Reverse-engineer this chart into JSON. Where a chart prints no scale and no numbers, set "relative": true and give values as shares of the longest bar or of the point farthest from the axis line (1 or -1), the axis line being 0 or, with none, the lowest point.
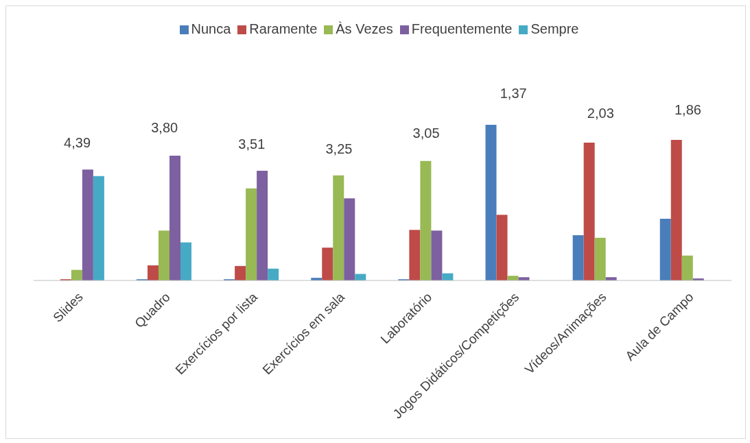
{
  "chart_data": {
    "type": "bar",
    "relative": true,
    "legend": "top",
    "categories": [
      "Slides",
      "Quadro",
      "Exercícios por lista",
      "Exercícios em sala",
      "Laboratório",
      "Jogos Didáticos/Competições",
      "Vídeos/Animações",
      "Aula de Campo"
    ],
    "series": [
      {
        "name": "Nunca",
        "color": "#4a7ebb",
        "values": [
          0,
          0.008,
          0.008,
          0.017,
          0.008,
          1,
          0.291,
          0.397
        ]
      },
      {
        "name": "Raramente",
        "color": "#be4b48",
        "values": [
          0.008,
          0.097,
          0.093,
          0.211,
          0.325,
          0.422,
          0.886,
          0.903
        ]
      },
      {
        "name": "Às Vezes",
        "color": "#98b954",
        "values": [
          0.068,
          0.321,
          0.591,
          0.675,
          0.768,
          0.03,
          0.274,
          0.16
        ]
      },
      {
        "name": "Frequentemente",
        "color": "#7d60a0",
        "values": [
          0.713,
          0.802,
          0.705,
          0.527,
          0.321,
          0.021,
          0.021,
          0.013
        ]
      },
      {
        "name": "Sempre",
        "color": "#46aac5",
        "values": [
          0.671,
          0.245,
          0.076,
          0.042,
          0.046,
          0,
          0,
          0
        ]
      }
    ],
    "annotations": [
      "4,39",
      "3,80",
      "3,51",
      "3,25",
      "3,05",
      "1,37",
      "2,03",
      "1,86"
    ]
  }
}
